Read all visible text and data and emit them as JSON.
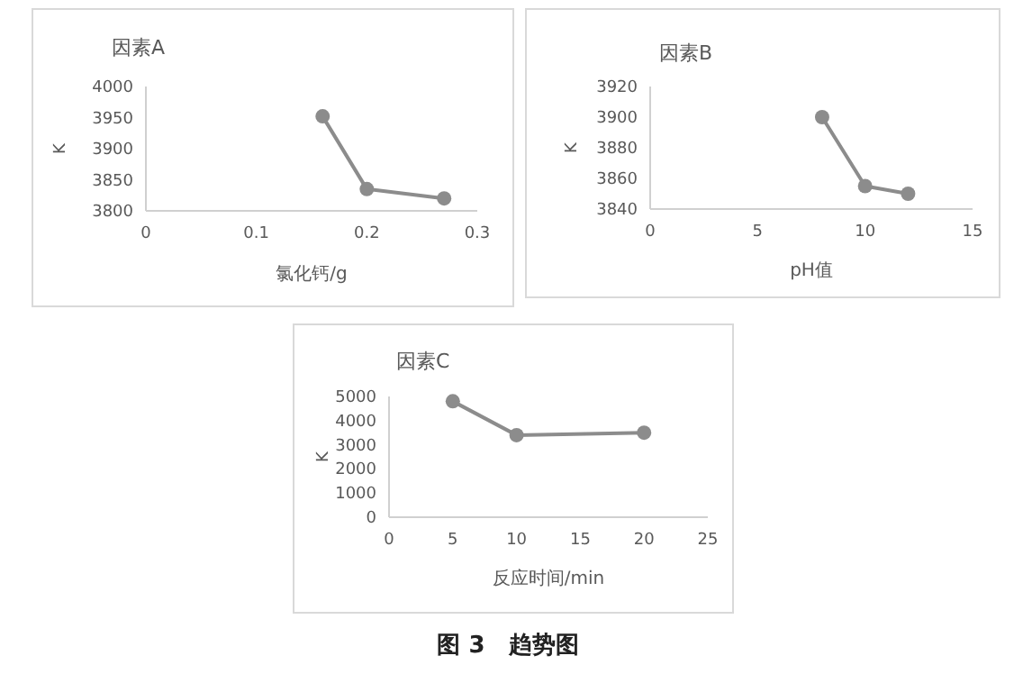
{
  "chart_data": [
    {
      "type": "line",
      "title": "因素A",
      "xlabel": "氯化钙/g",
      "ylabel": "K",
      "xlim": [
        0,
        0.3
      ],
      "xticks": [
        0,
        0.1,
        0.2,
        0.3
      ],
      "ylim": [
        3800,
        4000
      ],
      "yticks": [
        3800,
        3850,
        3900,
        3950,
        4000
      ],
      "marker": "circle",
      "x": [
        0.16,
        0.2,
        0.27
      ],
      "series": [
        {
          "color": "#8c8c8c",
          "values": [
            3952,
            3835,
            3820
          ]
        }
      ]
    },
    {
      "type": "line",
      "title": "因素B",
      "xlabel": "pH值",
      "ylabel": "K",
      "xlim": [
        0,
        15
      ],
      "xticks": [
        0,
        5,
        10,
        15
      ],
      "ylim": [
        3840,
        3920
      ],
      "yticks": [
        3840,
        3860,
        3880,
        3900,
        3920
      ],
      "marker": "circle",
      "x": [
        8,
        10,
        12
      ],
      "series": [
        {
          "color": "#8c8c8c",
          "values": [
            3900,
            3855,
            3850
          ]
        }
      ]
    },
    {
      "type": "line",
      "title": "因素C",
      "xlabel": "反应时间/min",
      "ylabel": "K",
      "xlim": [
        0,
        25
      ],
      "xticks": [
        0,
        5,
        10,
        15,
        20,
        25
      ],
      "ylim": [
        0,
        5000
      ],
      "yticks": [
        0,
        1000,
        2000,
        3000,
        4000,
        5000
      ],
      "marker": "circle",
      "x": [
        5,
        10,
        20
      ],
      "series": [
        {
          "color": "#8c8c8c",
          "values": [
            4800,
            3400,
            3500
          ]
        }
      ],
      "annotations": [
        "图 3　趋势图"
      ]
    }
  ]
}
